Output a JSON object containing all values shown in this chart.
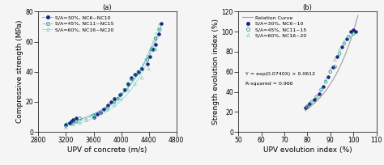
{
  "chart_a": {
    "title": "(a)",
    "xlabel": "UPV of concrete (m/s)",
    "ylabel": "Compressive strength (MPa)",
    "xlim": [
      2800,
      4800
    ],
    "ylim": [
      0,
      80
    ],
    "xticks": [
      2800,
      3200,
      3600,
      4000,
      4400,
      4800
    ],
    "yticks": [
      0,
      20,
      40,
      60,
      80
    ],
    "curve_colors": [
      "#8ab0d8",
      "#80cbc4",
      "#b2dfdb"
    ],
    "curve_styles": [
      "-",
      "--",
      "-"
    ],
    "marker_fill": [
      "#1a237e",
      "none",
      "none"
    ],
    "marker_edge": [
      "#1a237e",
      "#00897b",
      "#80cbc4"
    ],
    "marker_types": [
      "o",
      "o",
      "^"
    ],
    "series": [
      {
        "label": "S/A=30%, NC6~NC10",
        "x": [
          3200,
          3250,
          3280,
          3300,
          3350,
          3600,
          3650,
          3700,
          3750,
          3800,
          3850,
          3900,
          3980,
          4050,
          4100,
          4150,
          4200,
          4250,
          4300,
          4380,
          4420,
          4460,
          4500,
          4540,
          4580
        ],
        "y": [
          5,
          6,
          7,
          8,
          9,
          10,
          12,
          13,
          15,
          18,
          20,
          22,
          25,
          28,
          32,
          36,
          38,
          40,
          42,
          45,
          50,
          55,
          58,
          65,
          72
        ]
      },
      {
        "label": "S/A=45%, NC11~NC15",
        "x": [
          3200,
          3300,
          3350,
          3400,
          3600,
          3700,
          3800,
          3900,
          3950,
          4000,
          4050,
          4100,
          4150,
          4200,
          4250,
          4300,
          4380,
          4440,
          4500,
          4560
        ],
        "y": [
          4,
          6,
          7,
          9,
          11,
          13,
          16,
          20,
          22,
          25,
          28,
          32,
          35,
          38,
          40,
          42,
          48,
          55,
          62,
          68
        ]
      },
      {
        "label": "S/A=60%, NC16~NC20",
        "x": [
          3200,
          3300,
          3400,
          3500,
          3600,
          3700,
          3800,
          3900,
          4000,
          4100,
          4200,
          4300,
          4400,
          4500,
          4560
        ],
        "y": [
          3,
          5,
          6,
          8,
          10,
          13,
          15,
          18,
          22,
          28,
          32,
          36,
          42,
          55,
          68
        ]
      }
    ]
  },
  "chart_b": {
    "title": "(b)",
    "xlabel": "UPV evolution index (%)",
    "ylabel": "Strength evolution index (%)",
    "xlim": [
      50,
      110
    ],
    "ylim": [
      0,
      120
    ],
    "xticks": [
      50,
      60,
      70,
      80,
      90,
      100,
      110
    ],
    "yticks": [
      0,
      20,
      40,
      60,
      80,
      100,
      120
    ],
    "equation": "Y = exp(0.0740X) × 0.0612",
    "r_squared": "R-squared = 0.966",
    "curve_color": "#9e9e9e",
    "marker_fill": [
      "#1a237e",
      "none",
      "none"
    ],
    "marker_edge": [
      "#1a237e",
      "#00897b",
      "#80cbc4"
    ],
    "marker_types": [
      "o",
      "o",
      "^"
    ],
    "series": [
      {
        "label": "S/A=30%, NC6~10",
        "x": [
          79,
          80,
          81,
          83,
          85,
          87,
          89,
          91,
          93,
          95,
          97,
          99,
          100,
          101
        ],
        "y": [
          24,
          26,
          28,
          32,
          38,
          45,
          55,
          65,
          75,
          85,
          93,
          100,
          102,
          100
        ]
      },
      {
        "label": "S/A=45%, NC11~15",
        "x": [
          80,
          82,
          84,
          86,
          88,
          90,
          92,
          94,
          96,
          98,
          100
        ],
        "y": [
          25,
          30,
          35,
          42,
          50,
          60,
          65,
          78,
          88,
          95,
          98
        ]
      },
      {
        "label": "S/A=60%, NC16~20",
        "x": [
          80,
          82,
          84,
          86,
          88,
          90,
          92,
          94,
          96,
          98
        ],
        "y": [
          26,
          30,
          36,
          43,
          52,
          62,
          72,
          82,
          90,
          95
        ]
      }
    ]
  },
  "background_color": "#f5f5f5",
  "font_size": 6,
  "label_font_size": 6.5,
  "tick_font_size": 5.5
}
